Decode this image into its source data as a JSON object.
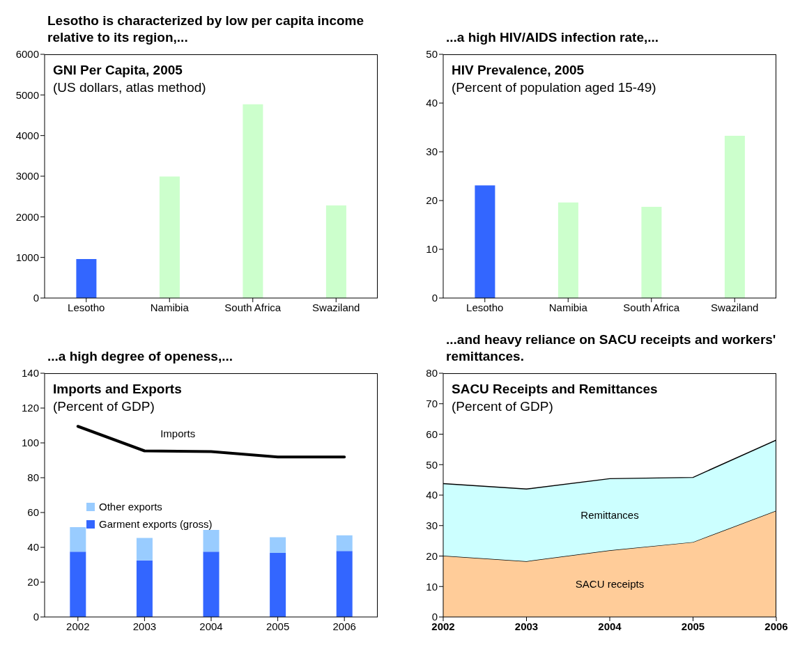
{
  "chart_data": [
    {
      "type": "bar",
      "title": "Lesotho is characterized by low per capita income relative to its region,...",
      "subtitle": "GNI Per Capita, 2005",
      "annotations": [
        "(US dollars, atlas method)"
      ],
      "categories": [
        "Lesotho",
        "Namibia",
        "South Africa",
        "Swaziland"
      ],
      "values": [
        960,
        2990,
        4770,
        2280
      ],
      "colors": [
        "#3366ff",
        "#ccffcc",
        "#ccffcc",
        "#ccffcc"
      ],
      "ylim": [
        0,
        6000
      ],
      "yticks": [
        0,
        1000,
        2000,
        3000,
        4000,
        5000,
        6000
      ]
    },
    {
      "type": "bar",
      "title": "...a high HIV/AIDS infection rate,...",
      "subtitle": "HIV Prevalence, 2005",
      "annotations": [
        "(Percent of population aged 15-49)"
      ],
      "categories": [
        "Lesotho",
        "Namibia",
        "South Africa",
        "Swaziland"
      ],
      "values": [
        23.1,
        19.6,
        18.7,
        33.3
      ],
      "colors": [
        "#3366ff",
        "#ccffcc",
        "#ccffcc",
        "#ccffcc"
      ],
      "ylim": [
        0,
        50
      ],
      "yticks": [
        0,
        10,
        20,
        30,
        40,
        50
      ]
    },
    {
      "type": "bar",
      "title": "...a high degree of openess,...",
      "subtitle": "Imports and Exports",
      "annotations": [
        "(Percent of GDP)"
      ],
      "categories": [
        "2002",
        "2003",
        "2004",
        "2005",
        "2006"
      ],
      "stacked": true,
      "legend": "left",
      "ylim": [
        0,
        140
      ],
      "yticks": [
        0,
        20,
        40,
        60,
        80,
        100,
        120,
        140
      ],
      "series": [
        {
          "name": "Garment exports (gross)",
          "color": "#3366ff",
          "values": [
            37.5,
            32.5,
            37.5,
            36.8,
            37.9
          ]
        },
        {
          "name": "Other exports",
          "color": "#99ccff",
          "values": [
            14.1,
            12.9,
            12.5,
            9.0,
            9.0
          ]
        },
        {
          "name": "Imports",
          "type": "line",
          "color": "#000000",
          "values": [
            109.5,
            95.4,
            95.0,
            91.9,
            91.9
          ]
        }
      ]
    },
    {
      "type": "area",
      "title": "...and heavy reliance on SACU receipts and workers' remittances.",
      "subtitle": "SACU Receipts and Remittances",
      "annotations": [
        "(Percent of GDP)"
      ],
      "x": [
        2002,
        2003,
        2004,
        2005,
        2006
      ],
      "xlim": [
        2002,
        2006
      ],
      "xticks": [
        2002,
        2003,
        2004,
        2005,
        2006
      ],
      "stacked": true,
      "ylim": [
        0,
        80
      ],
      "yticks": [
        0,
        10,
        20,
        30,
        40,
        50,
        60,
        70,
        80
      ],
      "series": [
        {
          "name": "SACU receipts",
          "color": "#ffcc99",
          "values": [
            20.1,
            18.3,
            21.9,
            24.6,
            34.9
          ]
        },
        {
          "name": "Remittances",
          "color": "#ccffff",
          "values": [
            23.7,
            23.7,
            23.5,
            21.2,
            23.2
          ]
        }
      ]
    }
  ]
}
